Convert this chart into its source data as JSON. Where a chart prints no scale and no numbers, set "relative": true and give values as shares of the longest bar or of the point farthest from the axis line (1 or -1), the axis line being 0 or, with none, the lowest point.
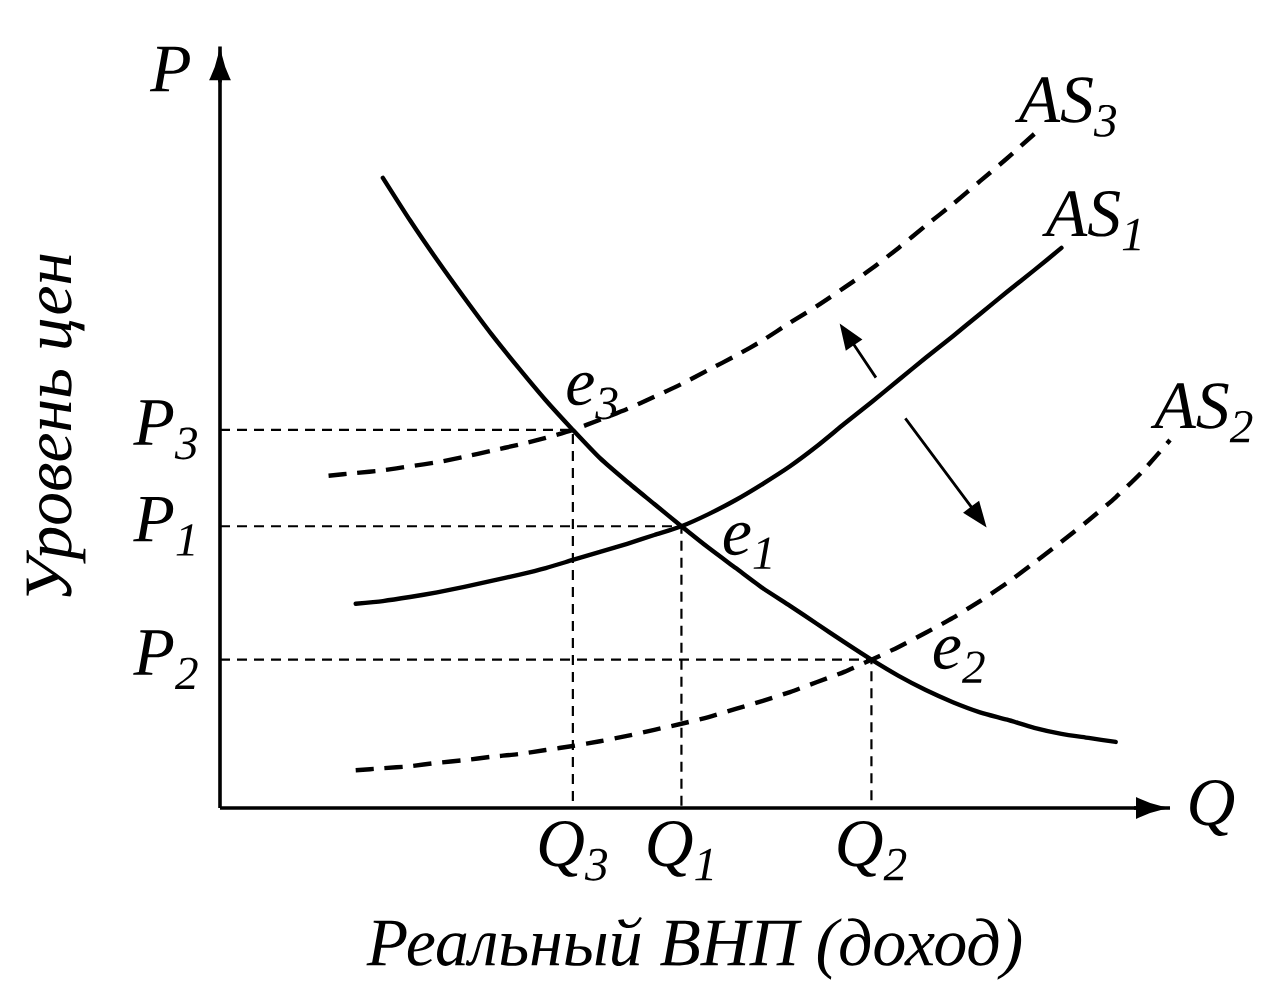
{
  "chart_data": {
    "type": "line",
    "relative": true,
    "xlabel": "Реальный ВНП (доход)",
    "ylabel": "Уровень цен",
    "categories": [
      null,
      null,
      null,
      null,
      null,
      null,
      null,
      null,
      null,
      null,
      null,
      null,
      null,
      "Q$_{3}$",
      null,
      null,
      null,
      "Q$_{1}$",
      null,
      null,
      null,
      null,
      null,
      null,
      "Q$_{2}$",
      null,
      null,
      null,
      null,
      null,
      null,
      null,
      null,
      null,
      null,
      null
    ],
    "annotations": [
      "P",
      "Q",
      "P$_{3}$",
      "P$_{1}$",
      "P$_{2}$",
      {
        "text": "e$_{3}$",
        "x": "Q$_{3}$",
        "y": 0.561
      },
      {
        "text": "e$_{1}$",
        "x": "Q$_{1}$",
        "y": 0.418
      },
      {
        "text": "e$_{2}$",
        "x": "Q$_{2}$",
        "y": 0.22
      }
    ],
    "series": [
      {
        "color": "#000000",
        "line_style": "solid",
        "values": [
          null,
          null,
          null,
          null,
          null,
          null,
          0.935,
          0.872,
          0.813,
          0.757,
          0.703,
          0.653,
          0.605,
          0.561,
          0.519,
          0.484,
          0.451,
          0.418,
          0.386,
          0.356,
          0.326,
          0.3,
          0.273,
          0.246,
          0.22,
          0.196,
          0.175,
          0.157,
          0.142,
          0.131,
          0.119,
          0.11,
          0.104,
          0.098,
          null,
          null
        ]
      },
      {
        "name": "AS$_{1}$",
        "color": "#000000",
        "line_style": "solid",
        "values": [
          null,
          null,
          null,
          null,
          null,
          0.303,
          0.307,
          0.313,
          0.32,
          0.328,
          0.337,
          0.346,
          0.356,
          0.368,
          0.38,
          0.392,
          0.405,
          0.418,
          0.436,
          0.457,
          0.481,
          0.507,
          0.537,
          0.57,
          0.602,
          0.635,
          0.668,
          0.7,
          0.733,
          0.766,
          0.798,
          0.831,
          null,
          null,
          null,
          null
        ]
      },
      {
        "name": "AS$_{3}$",
        "color": "#000000",
        "line_style": "dashed",
        "values": [
          null,
          null,
          null,
          null,
          0.493,
          0.497,
          0.501,
          0.507,
          0.513,
          0.521,
          0.53,
          0.539,
          0.549,
          0.561,
          0.576,
          0.592,
          0.61,
          0.629,
          0.65,
          0.671,
          0.694,
          0.72,
          0.745,
          0.772,
          0.8,
          0.831,
          0.864,
          0.896,
          0.93,
          0.964,
          1.0,
          null,
          null,
          null,
          null,
          null
        ]
      },
      {
        "name": "AS$_{2}$",
        "color": "#000000",
        "line_style": "dashed",
        "values": [
          null,
          null,
          null,
          null,
          null,
          0.056,
          0.059,
          0.062,
          0.067,
          0.071,
          0.076,
          0.08,
          0.086,
          0.092,
          0.099,
          0.107,
          0.116,
          0.125,
          0.135,
          0.147,
          0.159,
          0.172,
          0.187,
          0.202,
          0.22,
          0.239,
          0.26,
          0.282,
          0.307,
          0.334,
          0.364,
          0.395,
          0.427,
          0.461,
          0.5,
          0.546
        ]
      }
    ]
  }
}
